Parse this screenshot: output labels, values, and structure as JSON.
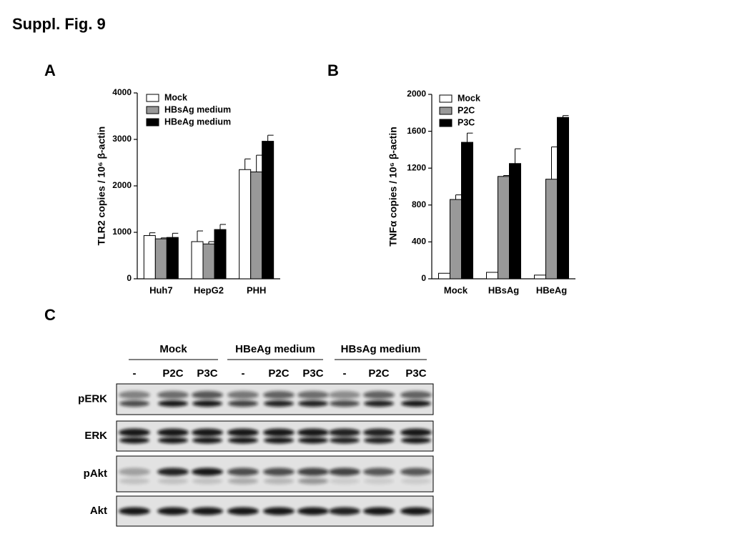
{
  "title": "Suppl. Fig. 9",
  "chart_data": [
    {
      "type": "bar",
      "panel": "A",
      "ylabel": "TLR2 copies / 10⁶ β-actin",
      "categories": [
        "Huh7",
        "HepG2",
        "PHH"
      ],
      "series": [
        {
          "name": "Mock",
          "color": "#ffffff",
          "values": [
            930,
            800,
            2350
          ],
          "errors": [
            60,
            230,
            230
          ]
        },
        {
          "name": "HBsAg medium",
          "color": "#999999",
          "values": [
            860,
            750,
            2300
          ],
          "errors": [
            20,
            50,
            360
          ]
        },
        {
          "name": "HBeAg medium",
          "color": "#000000",
          "values": [
            890,
            1060,
            2960
          ],
          "errors": [
            90,
            110,
            130
          ]
        }
      ],
      "ylim": [
        0,
        4000
      ],
      "yticks": [
        0,
        1000,
        2000,
        3000,
        4000
      ],
      "legend": "upper left"
    },
    {
      "type": "bar",
      "panel": "B",
      "ylabel": "TNFα copies / 10⁶ β-actin",
      "categories": [
        "Mock",
        "HBsAg",
        "HBeAg"
      ],
      "series": [
        {
          "name": "Mock",
          "color": "#ffffff",
          "values": [
            60,
            70,
            40
          ]
        },
        {
          "name": "P2C",
          "color": "#999999",
          "values": [
            860,
            1110,
            1080
          ],
          "errors": [
            50,
            10,
            350
          ]
        },
        {
          "name": "P3C",
          "color": "#000000",
          "values": [
            1480,
            1250,
            1750
          ],
          "errors": [
            100,
            160,
            20
          ]
        }
      ],
      "ylim": [
        0,
        2000
      ],
      "yticks": [
        0,
        400,
        800,
        1200,
        1600,
        2000
      ],
      "legend": "upper left"
    }
  ],
  "blot": {
    "panel": "C",
    "groups": [
      "Mock",
      "HBeAg medium",
      "HBsAg medium"
    ],
    "lanes": [
      "-",
      "P2C",
      "P3C",
      "-",
      "P2C",
      "P3C",
      "-",
      "P2C",
      "P3C"
    ],
    "rows": [
      "pERK",
      "ERK",
      "pAkt",
      "Akt"
    ]
  }
}
